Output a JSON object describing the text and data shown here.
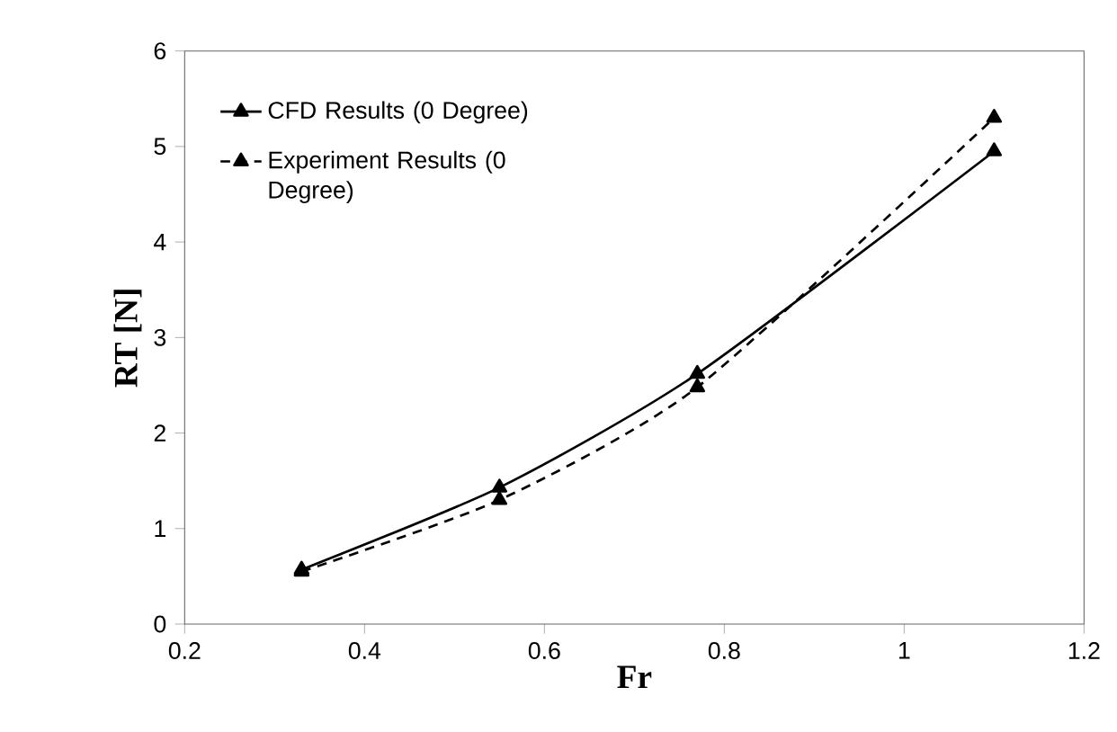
{
  "chart_data": {
    "type": "line",
    "xlabel": "Fr",
    "ylabel": "RT [N]",
    "x": [
      0.33,
      0.55,
      0.77,
      1.1
    ],
    "series": [
      {
        "name": "CFD Results (0 Degree)",
        "color": "#000000",
        "values": [
          0.57,
          1.43,
          2.62,
          4.95
        ],
        "line_style": "solid"
      },
      {
        "name": "Experiment Results (0 Degree)",
        "color": "#000000",
        "values": [
          0.55,
          1.3,
          2.48,
          5.3
        ],
        "line_style": "dashed"
      }
    ],
    "xlim": [
      0.2,
      1.2
    ],
    "xticks": [
      0.2,
      0.4,
      0.6,
      0.8,
      1,
      1.2
    ],
    "ylim": [
      0,
      6
    ],
    "yticks": [
      0,
      1,
      2,
      3,
      4,
      5,
      6
    ],
    "grid": false,
    "legend": "top left",
    "marker": "triangle"
  }
}
